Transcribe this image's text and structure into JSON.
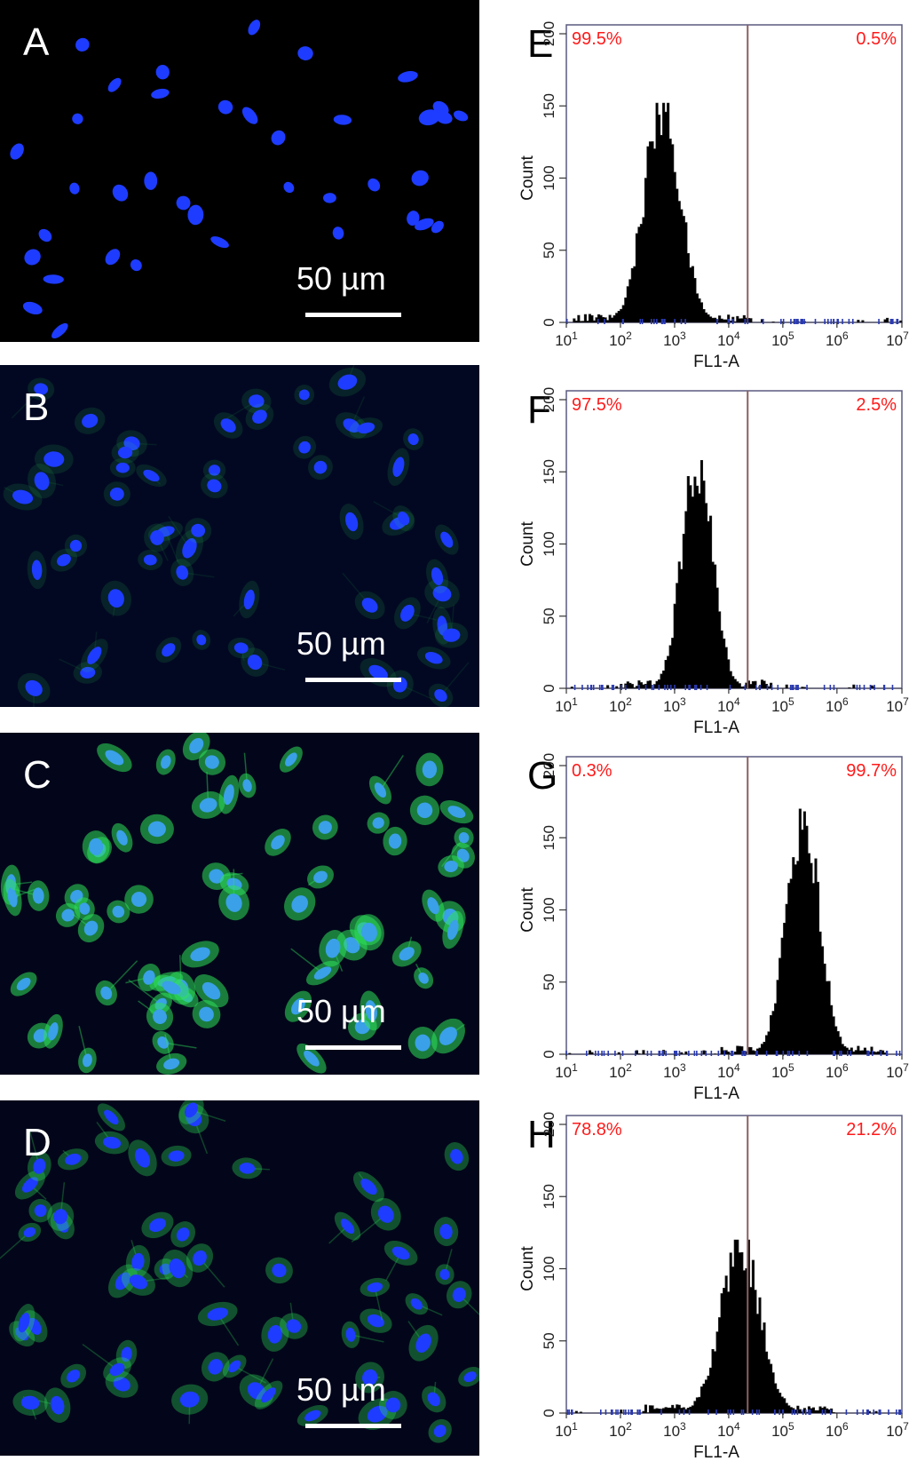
{
  "micrographs": [
    {
      "letter": "A",
      "scale_label": "50 µm",
      "staining": "blue",
      "cell_count": 38
    },
    {
      "letter": "B",
      "scale_label": "50 µm",
      "staining": "blue-faint-green",
      "cell_count": 55
    },
    {
      "letter": "C",
      "scale_label": "50 µm",
      "staining": "blue-green",
      "cell_count": 70
    },
    {
      "letter": "D",
      "scale_label": "50 µm",
      "staining": "blue-green-light",
      "cell_count": 60
    }
  ],
  "colors": {
    "nucleus_blue": "#1e3cff",
    "green_stain": "#2ee05a",
    "percent_red": "#ff1a1a",
    "gate_line": "#8a6060",
    "histogram_fill": "#000000"
  },
  "chart_data": [
    {
      "letter": "E",
      "type": "histogram",
      "xlabel": "FL1-A",
      "ylabel": "Count",
      "x_scale": "log10",
      "xlim": [
        1,
        7.2
      ],
      "ylim": [
        0,
        200
      ],
      "y_ticks": [
        "0",
        "50",
        "100",
        "150",
        "200"
      ],
      "x_ticks": [
        "10^1",
        "10^2",
        "10^3",
        "10^4",
        "10^5",
        "10^6",
        "10^7.2"
      ],
      "gate_log10": 4.35,
      "left_percent": "99.5%",
      "right_percent": "0.5%",
      "peak_log10": 2.75,
      "peak_count": 152,
      "spread": 0.33
    },
    {
      "letter": "F",
      "type": "histogram",
      "xlabel": "FL1-A",
      "ylabel": "Count",
      "x_scale": "log10",
      "xlim": [
        1,
        7.2
      ],
      "ylim": [
        0,
        200
      ],
      "y_ticks": [
        "0",
        "50",
        "100",
        "150",
        "200"
      ],
      "x_ticks": [
        "10^1",
        "10^2",
        "10^3",
        "10^4",
        "10^5",
        "10^6",
        "10^7.2"
      ],
      "gate_log10": 4.35,
      "left_percent": "97.5%",
      "right_percent": "2.5%",
      "peak_log10": 3.4,
      "peak_count": 160,
      "spread": 0.28
    },
    {
      "letter": "G",
      "type": "histogram",
      "xlabel": "FL1-A",
      "ylabel": "Count",
      "x_scale": "log10",
      "xlim": [
        1,
        7.2
      ],
      "ylim": [
        0,
        200
      ],
      "y_ticks": [
        "0",
        "50",
        "100",
        "150",
        "200"
      ],
      "x_ticks": [
        "10^1",
        "10^2",
        "10^3",
        "10^4",
        "10^5",
        "10^6",
        "10^7.2"
      ],
      "gate_log10": 4.35,
      "left_percent": "0.3%",
      "right_percent": "99.7%",
      "peak_log10": 5.35,
      "peak_count": 170,
      "spread": 0.3
    },
    {
      "letter": "H",
      "type": "histogram",
      "xlabel": "FL1-A",
      "ylabel": "Count",
      "x_scale": "log10",
      "xlim": [
        1,
        7.2
      ],
      "ylim": [
        0,
        200
      ],
      "y_ticks": [
        "0",
        "50",
        "100",
        "150",
        "200"
      ],
      "x_ticks": [
        "10^1",
        "10^2",
        "10^3",
        "10^4",
        "10^5",
        "10^6",
        "10^7.2"
      ],
      "gate_log10": 4.35,
      "left_percent": "78.8%",
      "right_percent": "21.2%",
      "peak_log10": 4.2,
      "peak_count": 120,
      "spread": 0.36
    }
  ]
}
